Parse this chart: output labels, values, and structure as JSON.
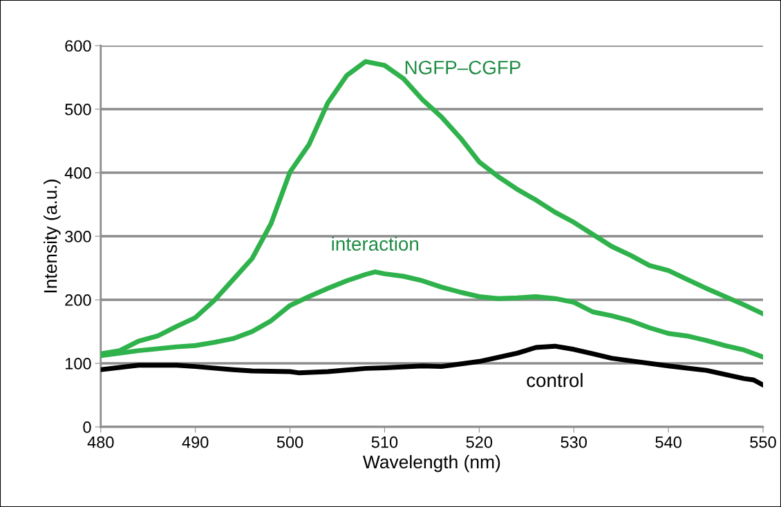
{
  "chart_data": {
    "type": "line",
    "xlabel": "Wavelength (nm)",
    "ylabel": "Intensity (a.u.)",
    "xlim": [
      480,
      550
    ],
    "xticks": [
      480,
      490,
      500,
      510,
      520,
      530,
      540,
      550
    ],
    "ylim": [
      0,
      600
    ],
    "yticks": [
      0,
      100,
      200,
      300,
      400,
      500,
      600
    ],
    "grid": "y",
    "legend": false,
    "line_style": "solid",
    "marker": "none",
    "series": [
      {
        "name": "NGFP–CGFP",
        "color": "#2fb24c",
        "x": [
          480,
          482,
          484,
          486,
          488,
          490,
          492,
          494,
          496,
          498,
          500,
          502,
          504,
          506,
          508,
          510,
          512,
          514,
          516,
          518,
          520,
          522,
          524,
          526,
          528,
          530,
          532,
          534,
          536,
          538,
          540,
          542,
          544,
          546,
          548,
          550
        ],
        "values": [
          115,
          120,
          135,
          143,
          158,
          172,
          199,
          232,
          265,
          320,
          401,
          444,
          510,
          553,
          575,
          569,
          548,
          515,
          488,
          455,
          417,
          394,
          374,
          357,
          338,
          322,
          303,
          284,
          270,
          254,
          246,
          232,
          218,
          205,
          192,
          178
        ]
      },
      {
        "name": "interaction",
        "color": "#2fb24c",
        "x": [
          480,
          484,
          488,
          490,
          492,
          494,
          496,
          498,
          500,
          502,
          504,
          506,
          508,
          509,
          510,
          512,
          514,
          516,
          518,
          520,
          522,
          524,
          526,
          528,
          530,
          532,
          534,
          536,
          538,
          540,
          542,
          544,
          546,
          548,
          550
        ],
        "values": [
          112,
          120,
          126,
          128,
          133,
          139,
          150,
          167,
          191,
          205,
          218,
          230,
          240,
          244,
          241,
          237,
          230,
          220,
          212,
          205,
          202,
          203,
          205,
          202,
          196,
          181,
          175,
          167,
          156,
          147,
          143,
          136,
          128,
          121,
          110
        ]
      },
      {
        "name": "control",
        "color": "#000000",
        "x": [
          480,
          484,
          488,
          490,
          494,
          496,
          500,
          501,
          504,
          508,
          510,
          514,
          516,
          520,
          524,
          526,
          528,
          530,
          532,
          534,
          536,
          540,
          544,
          548,
          549,
          550
        ],
        "values": [
          90,
          97,
          97,
          95,
          90,
          88,
          87,
          85,
          87,
          92,
          93,
          96,
          95,
          103,
          116,
          125,
          127,
          122,
          115,
          108,
          104,
          96,
          89,
          76,
          74,
          66
        ]
      }
    ]
  }
}
